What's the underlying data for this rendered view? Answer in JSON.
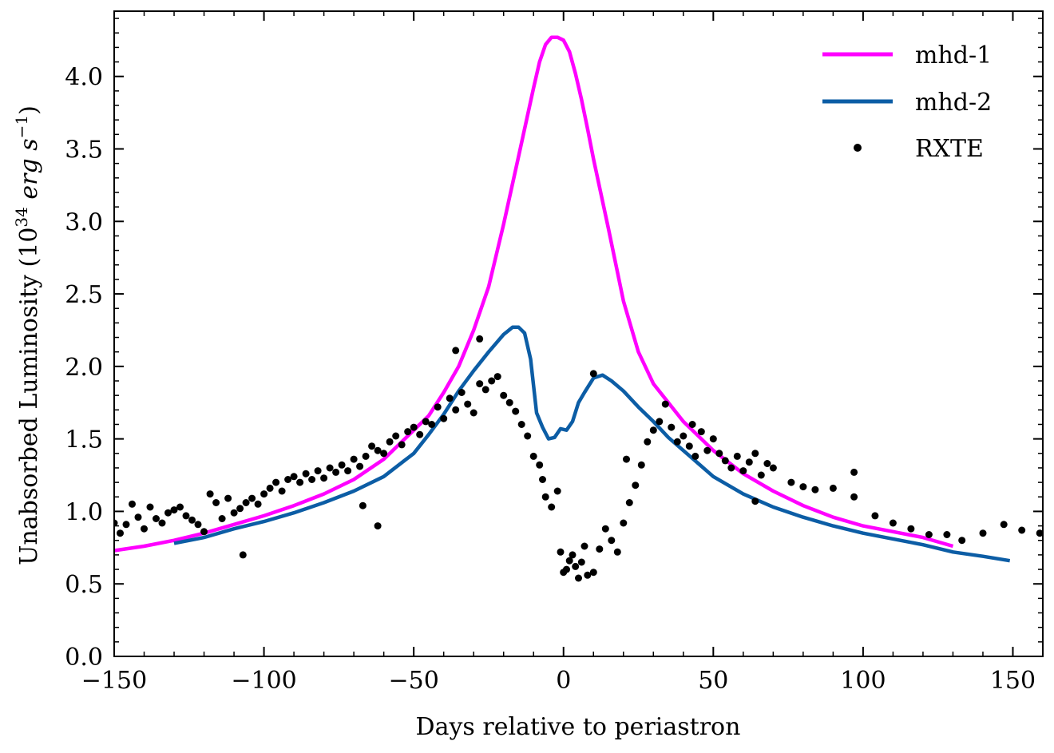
{
  "chart_data": {
    "type": "line",
    "title": "",
    "xlabel": "Days relative to periastron",
    "ylabel_parts": {
      "prefix": "Unabsorbed Luminosity (10",
      "exp": "34",
      "unit1": " erg s",
      "exp2": "−1",
      "suffix": ")"
    },
    "xlim": [
      -150,
      160
    ],
    "ylim": [
      0,
      4.45
    ],
    "xticks": [
      -150,
      -100,
      -50,
      0,
      50,
      100,
      150
    ],
    "xtick_labels": [
      "−150",
      "−100",
      "−50",
      "0",
      "50",
      "100",
      "150"
    ],
    "yticks": [
      0,
      0.5,
      1,
      1.5,
      2,
      2.5,
      3,
      3.5,
      4
    ],
    "ytick_labels": [
      "0.0",
      "0.5",
      "1.0",
      "1.5",
      "2.0",
      "2.5",
      "3.0",
      "3.5",
      "4.0"
    ],
    "grid": false,
    "legend_position": "top-right",
    "series": [
      {
        "name": "mhd-1",
        "kind": "line",
        "color": "#ff00ff",
        "x": [
          -150,
          -140,
          -130,
          -120,
          -110,
          -100,
          -90,
          -80,
          -70,
          -60,
          -50,
          -45,
          -40,
          -35,
          -30,
          -25,
          -20,
          -15,
          -10,
          -8,
          -6,
          -4,
          -2,
          0,
          2,
          4,
          6,
          8,
          10,
          15,
          20,
          25,
          30,
          35,
          40,
          45,
          50,
          60,
          70,
          80,
          90,
          100,
          110,
          120,
          130
        ],
        "y": [
          0.73,
          0.76,
          0.8,
          0.85,
          0.91,
          0.97,
          1.04,
          1.12,
          1.22,
          1.36,
          1.56,
          1.66,
          1.82,
          2.0,
          2.25,
          2.55,
          2.98,
          3.45,
          3.92,
          4.1,
          4.22,
          4.27,
          4.27,
          4.25,
          4.17,
          4.02,
          3.84,
          3.64,
          3.43,
          2.95,
          2.45,
          2.1,
          1.88,
          1.75,
          1.62,
          1.52,
          1.42,
          1.26,
          1.14,
          1.04,
          0.96,
          0.9,
          0.86,
          0.82,
          0.76
        ]
      },
      {
        "name": "mhd-2",
        "kind": "line",
        "color": "#0c5da5",
        "x": [
          -130,
          -120,
          -110,
          -100,
          -90,
          -80,
          -70,
          -60,
          -50,
          -45,
          -40,
          -35,
          -30,
          -25,
          -20,
          -17,
          -15,
          -13,
          -11,
          -9,
          -7,
          -5,
          -3,
          -1,
          1,
          3,
          5,
          7,
          10,
          13,
          16,
          20,
          25,
          30,
          35,
          40,
          45,
          50,
          60,
          70,
          80,
          90,
          100,
          110,
          120,
          130,
          140,
          149
        ],
        "y": [
          0.78,
          0.82,
          0.88,
          0.93,
          0.99,
          1.06,
          1.14,
          1.24,
          1.4,
          1.53,
          1.67,
          1.83,
          1.97,
          2.1,
          2.22,
          2.27,
          2.27,
          2.23,
          2.05,
          1.68,
          1.58,
          1.5,
          1.51,
          1.57,
          1.56,
          1.62,
          1.75,
          1.82,
          1.92,
          1.94,
          1.9,
          1.83,
          1.72,
          1.62,
          1.51,
          1.42,
          1.33,
          1.24,
          1.12,
          1.03,
          0.96,
          0.9,
          0.85,
          0.81,
          0.77,
          0.72,
          0.69,
          0.66
        ]
      },
      {
        "name": "RXTE",
        "kind": "scatter",
        "color": "#000000",
        "x": [
          -150,
          -148,
          -146,
          -144,
          -142,
          -140,
          -138,
          -136,
          -134,
          -132,
          -130,
          -128,
          -126,
          -124,
          -122,
          -120,
          -118,
          -116,
          -114,
          -112,
          -110,
          -108,
          -106,
          -104,
          -102,
          -100,
          -98,
          -96,
          -94,
          -92,
          -90,
          -88,
          -86,
          -84,
          -82,
          -80,
          -78,
          -76,
          -74,
          -72,
          -70,
          -68,
          -66,
          -64,
          -62,
          -60,
          -58,
          -56,
          -54,
          -52,
          -50,
          -48,
          -46,
          -44,
          -42,
          -40,
          -38,
          -36,
          -34,
          -32,
          -30,
          -28,
          -26,
          -24,
          -22,
          -20,
          -18,
          -16,
          -14,
          -12,
          -10,
          -8,
          -7,
          -6,
          -4,
          -2,
          -1,
          0,
          1,
          2,
          3,
          4,
          5,
          6,
          7,
          8,
          10,
          12,
          14,
          16,
          18,
          20,
          22,
          24,
          26,
          28,
          30,
          32,
          34,
          36,
          38,
          40,
          42,
          44,
          46,
          48,
          50,
          52,
          54,
          56,
          58,
          60,
          62,
          64,
          66,
          68,
          70,
          76,
          80,
          84,
          90,
          97,
          104,
          110,
          116,
          122,
          128,
          133,
          140,
          147,
          153,
          159,
          -107,
          -67,
          -62,
          -36,
          -28,
          10,
          21,
          43,
          64,
          97
        ],
        "y": [
          0.92,
          0.85,
          0.91,
          1.05,
          0.96,
          0.88,
          1.03,
          0.95,
          0.92,
          0.99,
          1.01,
          1.03,
          0.97,
          0.94,
          0.91,
          0.86,
          1.12,
          1.06,
          0.95,
          1.09,
          0.99,
          1.02,
          1.06,
          1.09,
          1.05,
          1.12,
          1.16,
          1.2,
          1.14,
          1.22,
          1.24,
          1.2,
          1.26,
          1.22,
          1.28,
          1.23,
          1.3,
          1.27,
          1.32,
          1.28,
          1.36,
          1.31,
          1.38,
          1.45,
          1.42,
          1.4,
          1.48,
          1.52,
          1.46,
          1.55,
          1.58,
          1.53,
          1.62,
          1.6,
          1.72,
          1.64,
          1.78,
          1.7,
          1.82,
          1.74,
          1.68,
          1.88,
          1.84,
          1.9,
          1.93,
          1.8,
          1.75,
          1.69,
          1.6,
          1.52,
          1.38,
          1.32,
          1.22,
          1.1,
          1.03,
          1.14,
          0.72,
          0.58,
          0.6,
          0.66,
          0.7,
          0.62,
          0.54,
          0.65,
          0.76,
          0.56,
          0.58,
          0.74,
          0.88,
          0.8,
          0.72,
          0.92,
          1.06,
          1.18,
          1.32,
          1.48,
          1.56,
          1.62,
          1.74,
          1.58,
          1.48,
          1.52,
          1.45,
          1.38,
          1.55,
          1.42,
          1.5,
          1.4,
          1.35,
          1.3,
          1.38,
          1.28,
          1.34,
          1.4,
          1.25,
          1.33,
          1.3,
          1.2,
          1.17,
          1.15,
          1.16,
          1.1,
          0.97,
          0.92,
          0.88,
          0.84,
          0.84,
          0.8,
          0.85,
          0.91,
          0.87,
          0.85,
          0.7,
          1.04,
          0.9,
          2.11,
          2.19,
          1.95,
          1.36,
          1.6,
          1.07,
          1.27
        ]
      }
    ]
  }
}
